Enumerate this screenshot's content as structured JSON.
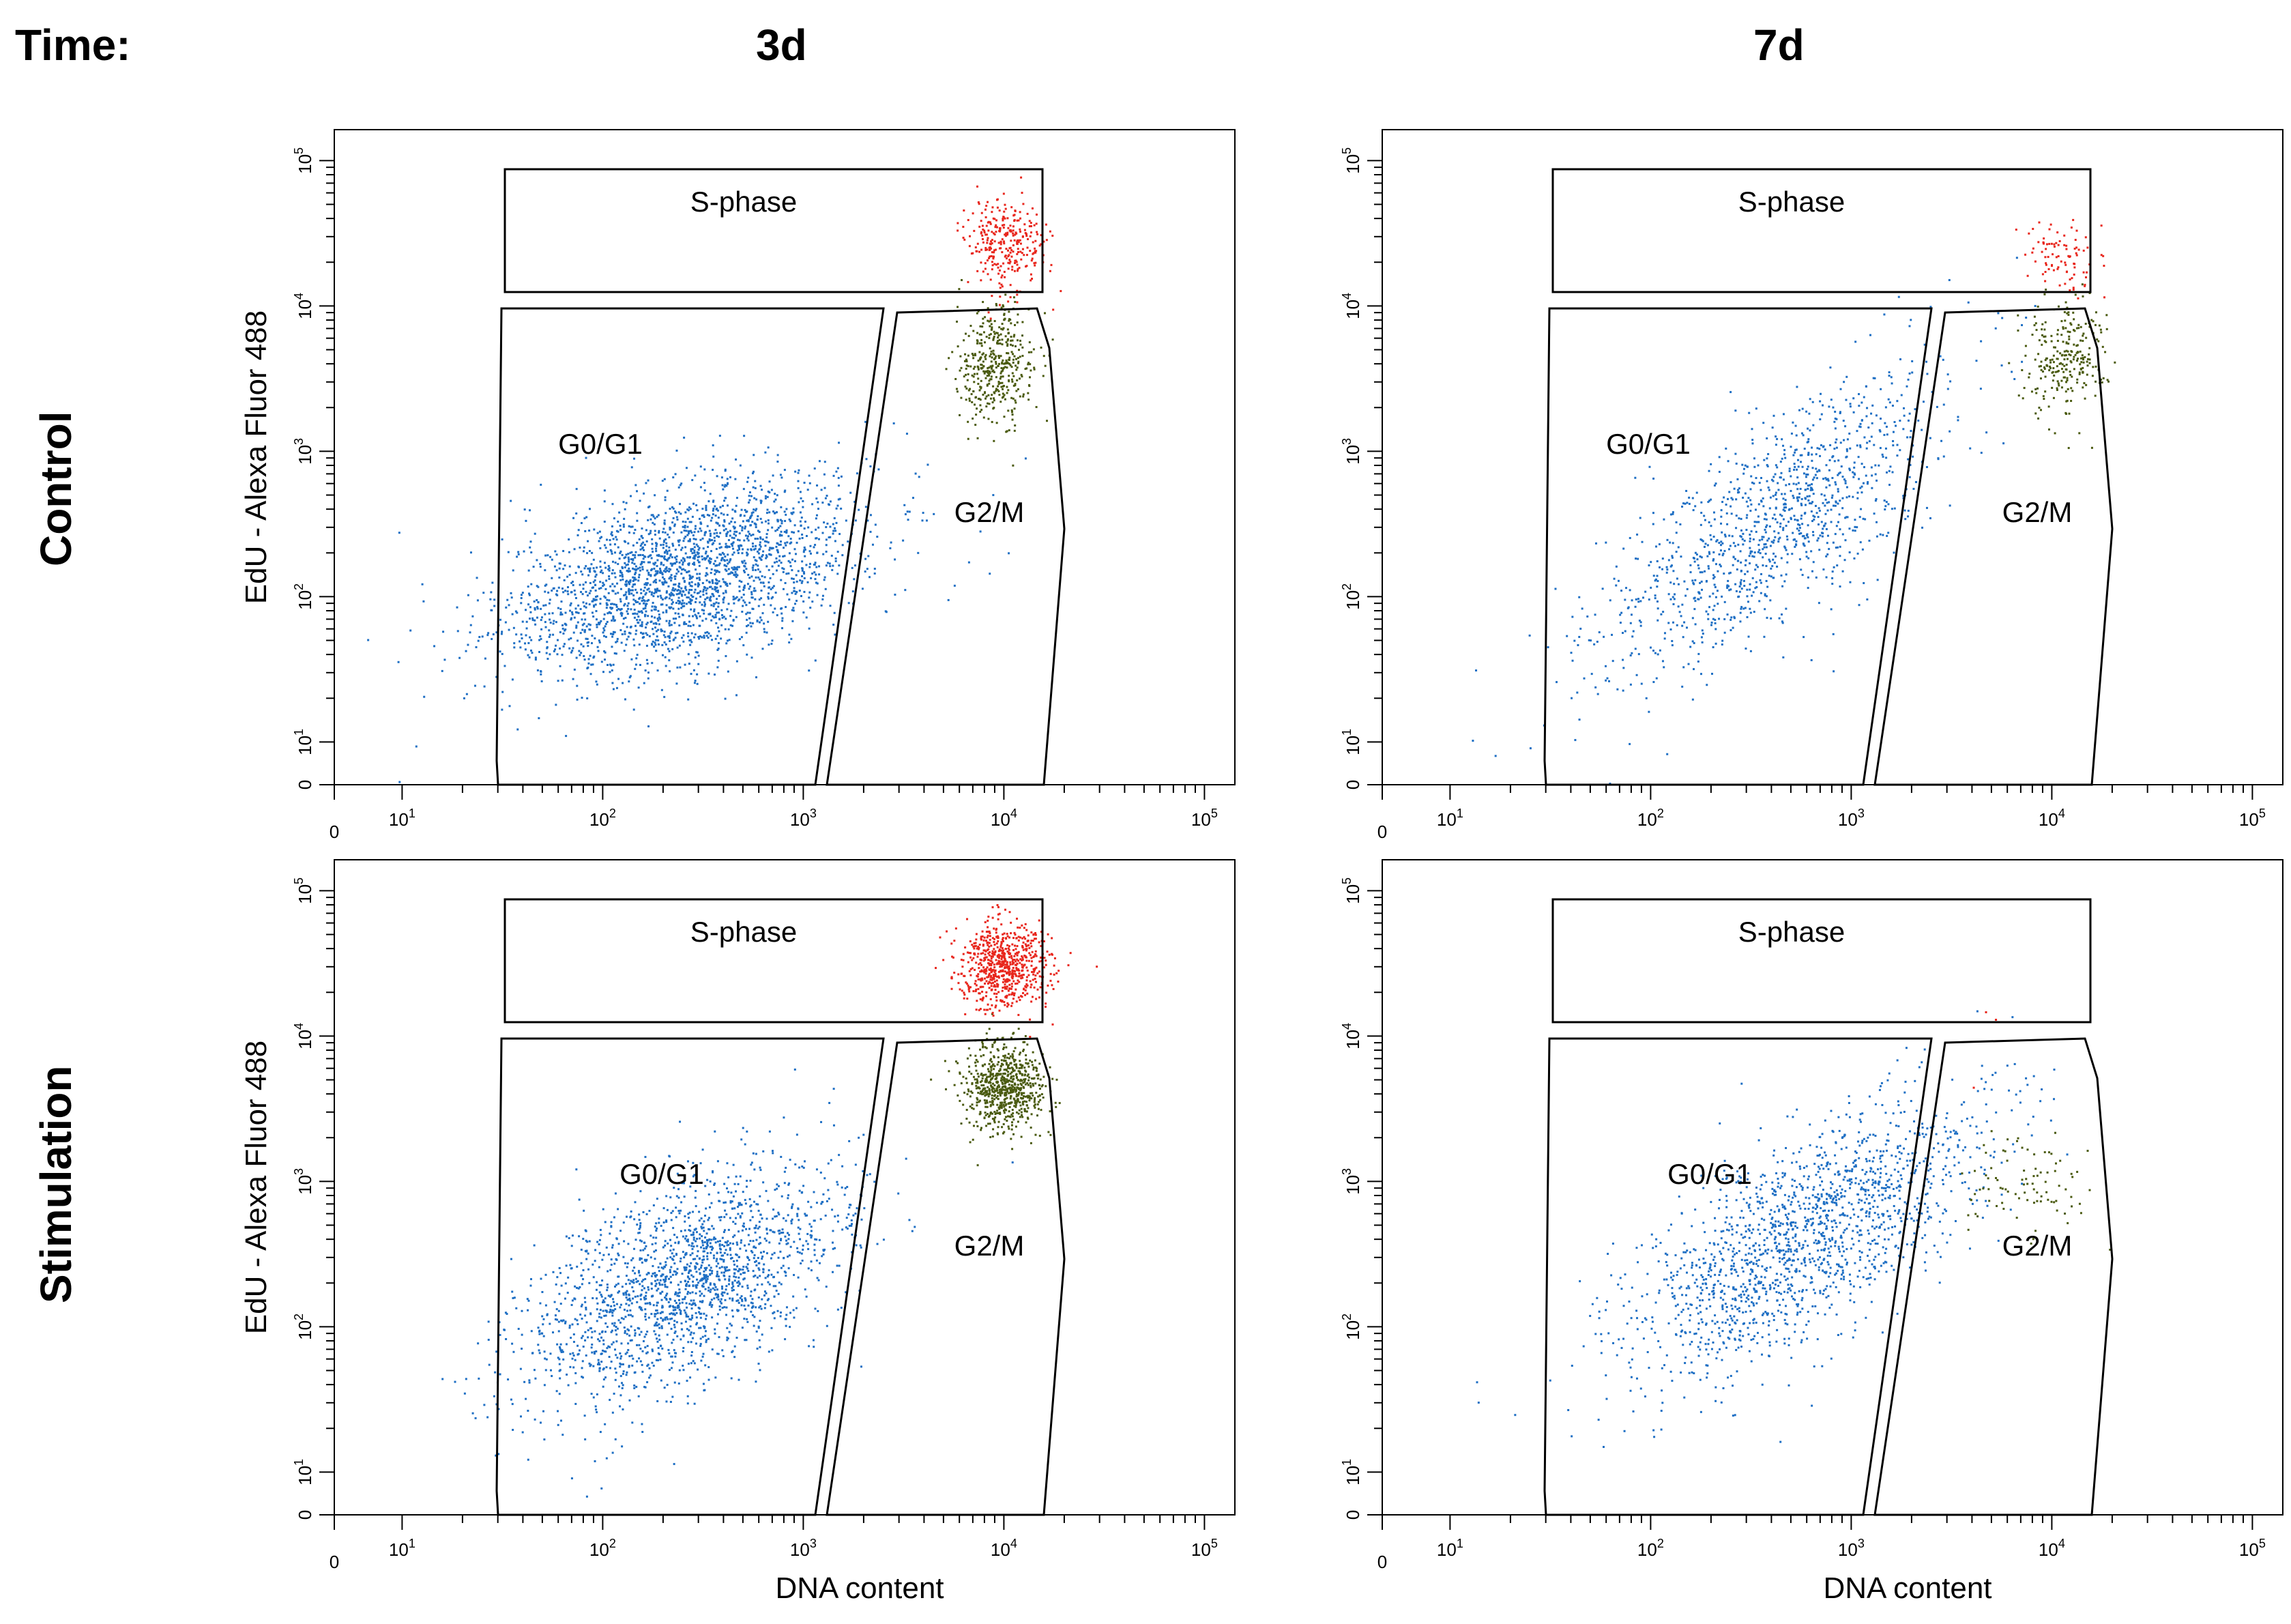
{
  "header": {
    "time_label": "Time:",
    "columns": [
      "3d",
      "7d"
    ]
  },
  "rows": [
    "Control",
    "Stimulation"
  ],
  "colors": {
    "s_phase": "#e8261c",
    "g2m": "#4a5a10",
    "g0g1": "#1e6fc4",
    "gate": "#000000"
  },
  "chart_data": [
    {
      "type": "scatter",
      "row": "Control",
      "time": "3d",
      "xlabel": "",
      "ylabel": "EdU - Alexa Fluor 488",
      "x_ticks": [
        "0",
        "10^1",
        "10^2",
        "10^3",
        "10^4",
        "10^5"
      ],
      "y_ticks": [
        "0",
        "10^1",
        "10^2",
        "10^3",
        "10^4",
        "10^5"
      ],
      "scale": "log (biexponential, 0 at origin)",
      "gates": {
        "s_phase": "S-phase",
        "g0g1": "G0/G1",
        "g2m": "G2/M"
      },
      "populations": [
        {
          "name": "G0/G1",
          "color": "#1e6fc4",
          "count": 2400,
          "center_log": [
            2.4,
            2.15
          ],
          "spread_log": [
            0.45,
            0.3
          ],
          "trend": 0.35
        },
        {
          "name": "G2/M",
          "color": "#4a5a10",
          "count": 420,
          "center_log": [
            3.95,
            3.6
          ],
          "spread_log": [
            0.1,
            0.2
          ],
          "trend": 0
        },
        {
          "name": "S-phase",
          "color": "#e8261c",
          "count": 300,
          "center_log": [
            4.0,
            4.45
          ],
          "spread_log": [
            0.1,
            0.15
          ],
          "trend": 0
        }
      ]
    },
    {
      "type": "scatter",
      "row": "Control",
      "time": "7d",
      "xlabel": "",
      "ylabel": "",
      "x_ticks": [
        "0",
        "10^1",
        "10^2",
        "10^3",
        "10^4",
        "10^5"
      ],
      "y_ticks": [
        "0",
        "10^1",
        "10^2",
        "10^3",
        "10^4",
        "10^5"
      ],
      "scale": "log (biexponential, 0 at origin)",
      "gates": {
        "s_phase": "S-phase",
        "g0g1": "G0/G1",
        "g2m": "G2/M"
      },
      "populations": [
        {
          "name": "G0/G1",
          "color": "#1e6fc4",
          "count": 1200,
          "center_log": [
            2.6,
            2.5
          ],
          "spread_log": [
            0.45,
            0.35
          ],
          "trend": 0.9
        },
        {
          "name": "G2/M",
          "color": "#4a5a10",
          "count": 260,
          "center_log": [
            4.05,
            3.65
          ],
          "spread_log": [
            0.1,
            0.2
          ],
          "trend": 0
        },
        {
          "name": "S-phase",
          "color": "#e8261c",
          "count": 90,
          "center_log": [
            4.05,
            4.35
          ],
          "spread_log": [
            0.09,
            0.12
          ],
          "trend": 0
        }
      ]
    },
    {
      "type": "scatter",
      "row": "Stimulation",
      "time": "3d",
      "xlabel": "DNA content",
      "ylabel": "EdU - Alexa Fluor 488",
      "x_ticks": [
        "0",
        "10^1",
        "10^2",
        "10^3",
        "10^4",
        "10^5"
      ],
      "y_ticks": [
        "0",
        "10^1",
        "10^2",
        "10^3",
        "10^4",
        "10^5"
      ],
      "scale": "log (biexponential, 0 at origin)",
      "gates": {
        "s_phase": "S-phase",
        "g0g1": "G0/G1",
        "g2m": "G2/M"
      },
      "populations": [
        {
          "name": "G0/G1",
          "color": "#1e6fc4",
          "count": 1900,
          "center_log": [
            2.4,
            2.3
          ],
          "spread_log": [
            0.4,
            0.35
          ],
          "trend": 0.6
        },
        {
          "name": "G2/M",
          "color": "#4a5a10",
          "count": 700,
          "center_log": [
            4.0,
            3.65
          ],
          "spread_log": [
            0.1,
            0.15
          ],
          "trend": 0
        },
        {
          "name": "S-phase",
          "color": "#e8261c",
          "count": 700,
          "center_log": [
            4.0,
            4.5
          ],
          "spread_log": [
            0.11,
            0.15
          ],
          "trend": 0
        }
      ]
    },
    {
      "type": "scatter",
      "row": "Stimulation",
      "time": "7d",
      "xlabel": "DNA content",
      "ylabel": "",
      "x_ticks": [
        "0",
        "10^1",
        "10^2",
        "10^3",
        "10^4",
        "10^5"
      ],
      "y_ticks": [
        "0",
        "10^1",
        "10^2",
        "10^3",
        "10^4",
        "10^5"
      ],
      "scale": "log (biexponential, 0 at origin)",
      "gates": {
        "s_phase": "S-phase",
        "g0g1": "G0/G1",
        "g2m": "G2/M"
      },
      "populations": [
        {
          "name": "G0/G1",
          "color": "#1e6fc4",
          "count": 1700,
          "center_log": [
            2.75,
            2.6
          ],
          "spread_log": [
            0.45,
            0.35
          ],
          "trend": 0.75
        },
        {
          "name": "G2/M",
          "color": "#4a5a10",
          "count": 90,
          "center_log": [
            3.85,
            3.0
          ],
          "spread_log": [
            0.15,
            0.2
          ],
          "trend": 0
        },
        {
          "name": "S-phase",
          "color": "#e8261c",
          "count": 3,
          "center_log": [
            3.7,
            4.1
          ],
          "spread_log": [
            0.05,
            0.2
          ],
          "trend": 0
        }
      ]
    }
  ]
}
